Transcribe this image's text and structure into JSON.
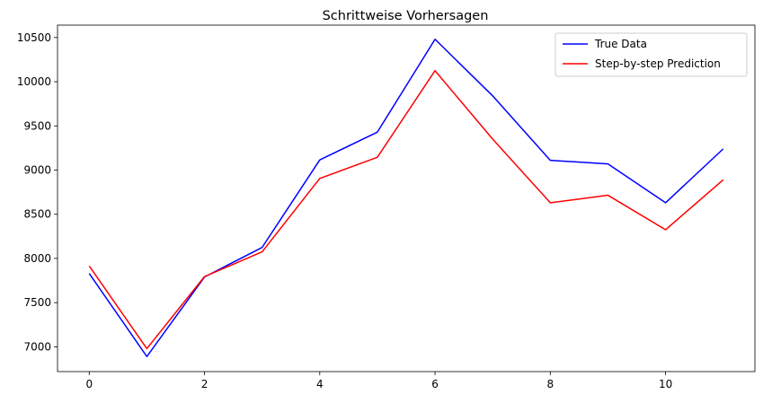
{
  "chart_data": {
    "type": "line",
    "title": "Schrittweise Vorhersagen",
    "xlabel": "",
    "ylabel": "",
    "x": [
      0,
      1,
      2,
      3,
      4,
      5,
      6,
      7,
      8,
      9,
      10,
      11
    ],
    "xlim": [
      -0.55,
      11.55
    ],
    "ylim": [
      6720,
      10640
    ],
    "x_ticks": [
      0,
      2,
      4,
      6,
      8,
      10
    ],
    "y_ticks": [
      7000,
      7500,
      8000,
      8500,
      9000,
      9500,
      10000,
      10500
    ],
    "grid": false,
    "legend_position": "top-right",
    "series": [
      {
        "name": "True Data",
        "color": "#0000ff",
        "values": [
          7830,
          6890,
          7790,
          8125,
          9115,
          9430,
          10480,
          9840,
          9110,
          9070,
          8630,
          9240
        ]
      },
      {
        "name": "Step-by-step Prediction",
        "color": "#ff0000",
        "values": [
          7915,
          6980,
          7795,
          8075,
          8905,
          9145,
          10125,
          9350,
          8630,
          8715,
          8325,
          8890
        ]
      }
    ]
  }
}
